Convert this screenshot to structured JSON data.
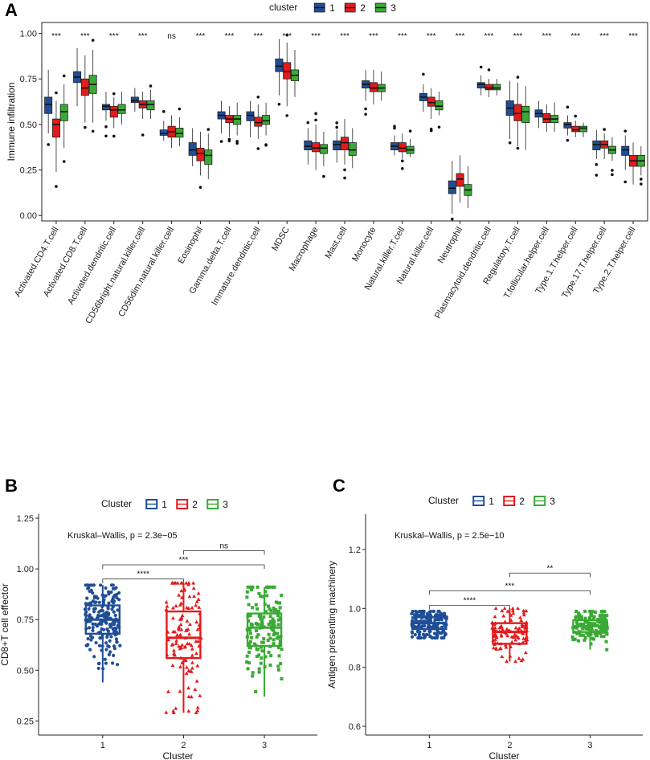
{
  "panel_letters": [
    "A",
    "B",
    "C"
  ],
  "colors": {
    "c1": "#1f4e96",
    "c2": "#e41a1c",
    "c3": "#3aaa35"
  },
  "chart_data": [
    {
      "type": "boxplot",
      "panel": "A",
      "legend_title": "cluster",
      "legend_labels": [
        "1",
        "2",
        "3"
      ],
      "ylabel": "Immune infiltration",
      "ylim": [
        -0.03,
        1.06
      ],
      "yticks": [
        "0.00",
        "0.25",
        "0.50",
        "0.75",
        "1.00"
      ],
      "categories": [
        "Activated.CD4.T.cell",
        "Activated.CD8.T.cell",
        "Activated.dendritic.cell",
        "CD56bright.natural.killer.cell",
        "CD56dim.natural.killer.cell",
        "Eosinophil",
        "Gamma.delta.T.cell",
        "Immature.dendritic.cell",
        "MDSC",
        "Macrophage",
        "Mast.cell",
        "Monocyte",
        "Natural.killer.T.cell",
        "Natural.killer.cell",
        "Neutrophil",
        "Plasmacytoid.dendritic.cell",
        "Regulatory.T.cell",
        "T.follicular.helper.cell",
        "Type.1.T.helper.cell",
        "Type.17.T.helper.cell",
        "Type.2.T.helper.cell"
      ],
      "significance": [
        "***",
        "***",
        "***",
        "***",
        "ns",
        "***",
        "***",
        "***",
        "***",
        "***",
        "***",
        "***",
        "***",
        "***",
        "***",
        "***",
        "***",
        "***",
        "***",
        "***",
        "***"
      ],
      "series": [
        {
          "name": "1",
          "boxes": [
            [
              0.45,
              0.56,
              0.61,
              0.65,
              0.8
            ],
            [
              0.6,
              0.73,
              0.76,
              0.79,
              0.92
            ],
            [
              0.52,
              0.58,
              0.6,
              0.61,
              0.68
            ],
            [
              0.57,
              0.62,
              0.63,
              0.65,
              0.7
            ],
            [
              0.41,
              0.44,
              0.45,
              0.47,
              0.52
            ],
            [
              0.27,
              0.33,
              0.36,
              0.4,
              0.48
            ],
            [
              0.45,
              0.53,
              0.55,
              0.57,
              0.63
            ],
            [
              0.43,
              0.52,
              0.55,
              0.57,
              0.63
            ],
            [
              0.66,
              0.79,
              0.82,
              0.86,
              0.97
            ],
            [
              0.28,
              0.36,
              0.38,
              0.41,
              0.48
            ],
            [
              0.29,
              0.36,
              0.39,
              0.41,
              0.47
            ],
            [
              0.63,
              0.7,
              0.72,
              0.74,
              0.8
            ],
            [
              0.33,
              0.36,
              0.38,
              0.4,
              0.44
            ],
            [
              0.57,
              0.63,
              0.65,
              0.67,
              0.72
            ],
            [
              0.01,
              0.12,
              0.15,
              0.19,
              0.3
            ],
            [
              0.66,
              0.7,
              0.72,
              0.73,
              0.77
            ],
            [
              0.42,
              0.55,
              0.59,
              0.63,
              0.74
            ],
            [
              0.48,
              0.54,
              0.56,
              0.58,
              0.63
            ],
            [
              0.44,
              0.48,
              0.5,
              0.51,
              0.55
            ],
            [
              0.31,
              0.36,
              0.39,
              0.41,
              0.47
            ],
            [
              0.25,
              0.33,
              0.36,
              0.38,
              0.44
            ]
          ]
        },
        {
          "name": "2",
          "boxes": [
            [
              0.24,
              0.43,
              0.5,
              0.53,
              0.63
            ],
            [
              0.51,
              0.66,
              0.7,
              0.75,
              0.88
            ],
            [
              0.48,
              0.54,
              0.58,
              0.6,
              0.65
            ],
            [
              0.53,
              0.59,
              0.61,
              0.63,
              0.68
            ],
            [
              0.37,
              0.43,
              0.46,
              0.49,
              0.55
            ],
            [
              0.22,
              0.3,
              0.34,
              0.37,
              0.46
            ],
            [
              0.43,
              0.51,
              0.53,
              0.55,
              0.6
            ],
            [
              0.42,
              0.49,
              0.51,
              0.54,
              0.61
            ],
            [
              0.6,
              0.75,
              0.79,
              0.84,
              0.95
            ],
            [
              0.25,
              0.35,
              0.37,
              0.4,
              0.5
            ],
            [
              0.28,
              0.36,
              0.4,
              0.43,
              0.53
            ],
            [
              0.61,
              0.68,
              0.7,
              0.73,
              0.8
            ],
            [
              0.31,
              0.35,
              0.37,
              0.4,
              0.45
            ],
            [
              0.53,
              0.6,
              0.62,
              0.65,
              0.7
            ],
            [
              0.07,
              0.16,
              0.2,
              0.23,
              0.33
            ],
            [
              0.65,
              0.69,
              0.7,
              0.72,
              0.75
            ],
            [
              0.38,
              0.52,
              0.56,
              0.61,
              0.73
            ],
            [
              0.46,
              0.51,
              0.53,
              0.56,
              0.61
            ],
            [
              0.43,
              0.46,
              0.47,
              0.49,
              0.52
            ],
            [
              0.31,
              0.37,
              0.39,
              0.41,
              0.45
            ],
            [
              0.17,
              0.27,
              0.3,
              0.33,
              0.4
            ]
          ]
        },
        {
          "name": "3",
          "boxes": [
            [
              0.37,
              0.52,
              0.57,
              0.61,
              0.72
            ],
            [
              0.51,
              0.67,
              0.72,
              0.77,
              0.91
            ],
            [
              0.5,
              0.56,
              0.58,
              0.61,
              0.68
            ],
            [
              0.53,
              0.58,
              0.61,
              0.63,
              0.69
            ],
            [
              0.38,
              0.43,
              0.45,
              0.48,
              0.54
            ],
            [
              0.2,
              0.28,
              0.33,
              0.36,
              0.45
            ],
            [
              0.44,
              0.5,
              0.53,
              0.55,
              0.62
            ],
            [
              0.44,
              0.5,
              0.52,
              0.55,
              0.62
            ],
            [
              0.65,
              0.74,
              0.77,
              0.8,
              0.91
            ],
            [
              0.27,
              0.34,
              0.37,
              0.39,
              0.46
            ],
            [
              0.26,
              0.33,
              0.36,
              0.4,
              0.48
            ],
            [
              0.63,
              0.68,
              0.7,
              0.72,
              0.79
            ],
            [
              0.32,
              0.34,
              0.36,
              0.38,
              0.42
            ],
            [
              0.55,
              0.58,
              0.6,
              0.63,
              0.68
            ],
            [
              0.04,
              0.11,
              0.14,
              0.17,
              0.27
            ],
            [
              0.66,
              0.69,
              0.7,
              0.72,
              0.75
            ],
            [
              0.36,
              0.51,
              0.57,
              0.6,
              0.71
            ],
            [
              0.46,
              0.51,
              0.53,
              0.55,
              0.62
            ],
            [
              0.43,
              0.46,
              0.48,
              0.49,
              0.51
            ],
            [
              0.3,
              0.34,
              0.36,
              0.38,
              0.43
            ],
            [
              0.22,
              0.27,
              0.3,
              0.33,
              0.38
            ]
          ]
        }
      ]
    },
    {
      "type": "boxplot_jitter",
      "panel": "B",
      "legend_title": "Cluster",
      "legend_labels": [
        "1",
        "2",
        "3"
      ],
      "xlabel": "Cluster",
      "ylabel": "CD8+T cell effector",
      "categories": [
        "1",
        "2",
        "3"
      ],
      "ylim": [
        0.18,
        1.27
      ],
      "yticks": [
        "0.25",
        "0.50",
        "0.75",
        "1.00",
        "1.25"
      ],
      "test_label": "Kruskal–Wallis, p = 2.3e−05",
      "boxes": [
        [
          0.44,
          0.68,
          0.75,
          0.82,
          0.92
        ],
        [
          0.29,
          0.56,
          0.66,
          0.79,
          0.93
        ],
        [
          0.37,
          0.62,
          0.71,
          0.78,
          0.91
        ]
      ],
      "comparisons": [
        {
          "pair": [
            "1",
            "2"
          ],
          "y": 0.95,
          "label": "****"
        },
        {
          "pair": [
            "1",
            "3"
          ],
          "y": 1.02,
          "label": "***"
        },
        {
          "pair": [
            "2",
            "3"
          ],
          "y": 1.09,
          "label": "ns"
        }
      ]
    },
    {
      "type": "boxplot_jitter",
      "panel": "C",
      "legend_title": "Cluster",
      "legend_labels": [
        "1",
        "2",
        "3"
      ],
      "xlabel": "Cluster",
      "ylabel": "Antigen presenting machinery",
      "categories": [
        "1",
        "2",
        "3"
      ],
      "ylim": [
        0.57,
        1.32
      ],
      "yticks": [
        "0.6",
        "0.8",
        "1.0",
        "1.2"
      ],
      "test_label": "Kruskal–Wallis, p = 2.5e−10",
      "boxes": [
        [
          0.9,
          0.93,
          0.95,
          0.97,
          0.99
        ],
        [
          0.82,
          0.88,
          0.92,
          0.95,
          1.0
        ],
        [
          0.86,
          0.92,
          0.94,
          0.96,
          0.99
        ]
      ],
      "comparisons": [
        {
          "pair": [
            "1",
            "2"
          ],
          "y": 1.01,
          "label": "****"
        },
        {
          "pair": [
            "1",
            "3"
          ],
          "y": 1.06,
          "label": "***"
        },
        {
          "pair": [
            "2",
            "3"
          ],
          "y": 1.12,
          "label": "**"
        }
      ]
    }
  ]
}
